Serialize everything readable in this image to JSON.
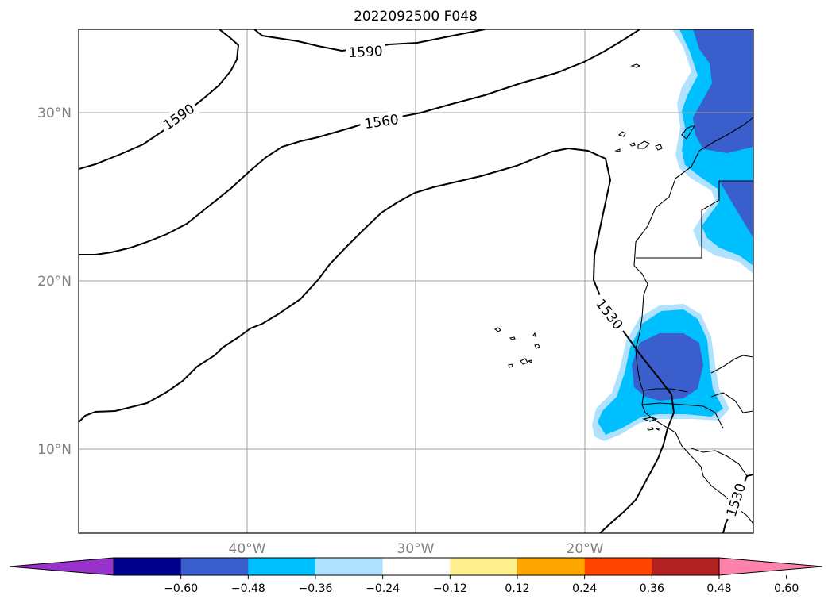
{
  "title": "2022092500 F048",
  "map": {
    "lat_labels": [
      "30°N",
      "20°N",
      "10°N"
    ],
    "lon_labels": [
      "40°W",
      "30°W",
      "20°W"
    ],
    "contour_labels": [
      "1590",
      "1590",
      "1560",
      "1530",
      "1530"
    ],
    "contour_color": "#000000",
    "gridline_color": "#a0a0a0",
    "grid": true
  },
  "colorbar": {
    "orientation": "horizontal",
    "extend": "both",
    "ticks": [
      "−0.60",
      "−0.48",
      "−0.36",
      "−0.24",
      "−0.12",
      "0.12",
      "0.24",
      "0.36",
      "0.48",
      "0.60"
    ],
    "colors": [
      "#9932cc",
      "#00008b",
      "#3a5fcd",
      "#00bfff",
      "#b0e2ff",
      "#ffffff",
      "#fff08f",
      "#ffa500",
      "#ff4500",
      "#b22222",
      "#ff82ab"
    ]
  }
}
